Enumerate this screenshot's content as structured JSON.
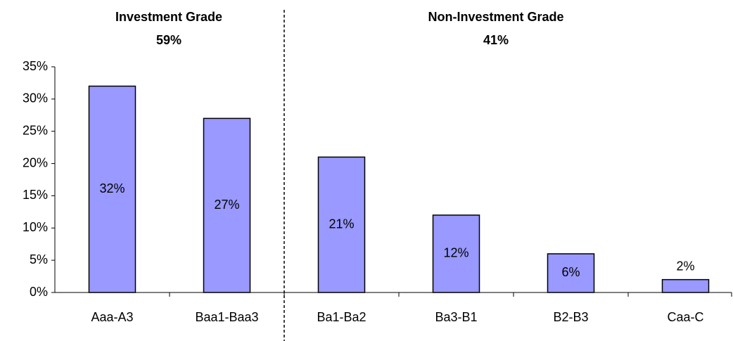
{
  "chart_data": {
    "type": "bar",
    "categories": [
      "Aaa-A3",
      "Baa1-Baa3",
      "Ba1-Ba2",
      "Ba3-B1",
      "B2-B3",
      "Caa-C"
    ],
    "values": [
      32,
      27,
      21,
      12,
      6,
      2
    ],
    "value_labels": [
      "32%",
      "27%",
      "21%",
      "12%",
      "6%",
      "2%"
    ],
    "color": "#9999ff",
    "ylim": [
      0,
      35
    ],
    "yticks": [
      {
        "value": 0,
        "label": "0%"
      },
      {
        "value": 5,
        "label": "5%"
      },
      {
        "value": 10,
        "label": "10%"
      },
      {
        "value": 15,
        "label": "15%"
      },
      {
        "value": 20,
        "label": "20%"
      },
      {
        "value": 25,
        "label": "25%"
      },
      {
        "value": 30,
        "label": "30%"
      },
      {
        "value": 35,
        "label": "35%"
      }
    ],
    "grid": false,
    "annotations": [
      {
        "title": "Investment Grade",
        "subtitle": "59%"
      },
      {
        "title": "Non-Investment Grade",
        "subtitle": "41%"
      }
    ]
  }
}
